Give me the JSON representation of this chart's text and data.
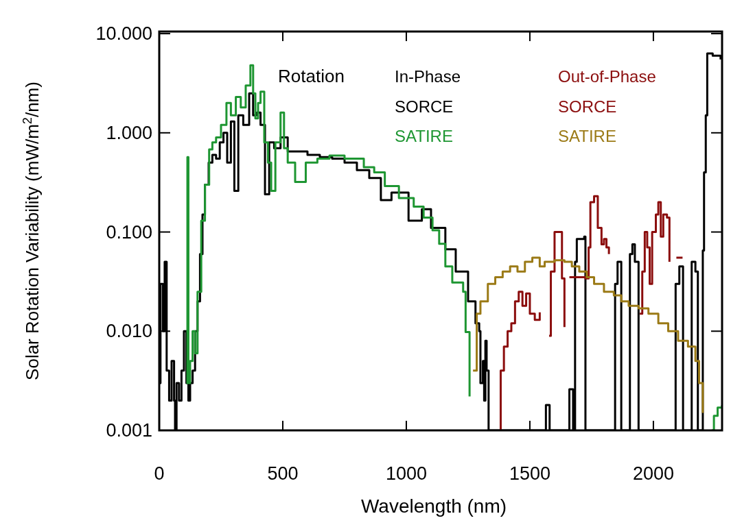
{
  "chart_data": {
    "type": "step",
    "xlabel": "Wavelength (nm)",
    "ylabel": "Solar Rotation Variability (mW/m$^{2}$/nm)",
    "legend_title": "Rotation",
    "annotations": [
      "In-Phase",
      "Out-of-Phase"
    ],
    "log": "y",
    "legend": "top",
    "xlim": [
      0,
      2278
    ],
    "ylim": [
      0.001,
      10.5
    ],
    "xticks": [
      0,
      500,
      1000,
      1500,
      2000
    ],
    "yticks": [
      {
        "value": 0.001,
        "label": "0.001"
      },
      {
        "value": 0.01,
        "label": "0.010"
      },
      {
        "value": 0.1,
        "label": "0.100"
      },
      {
        "value": 1,
        "label": "1.000"
      },
      {
        "value": 10,
        "label": "10.000"
      }
    ],
    "series": [
      {
        "name": "SORCE",
        "color": "#000000",
        "x": [
          0,
          5,
          15,
          22,
          30,
          40,
          50,
          60,
          64,
          70,
          80,
          90,
          100,
          110,
          118,
          125,
          135,
          145,
          155,
          165,
          175,
          185,
          200,
          215,
          230,
          245,
          260,
          275,
          290,
          304,
          320,
          340,
          364,
          380,
          395,
          410,
          428,
          445,
          465,
          491,
          520,
          550,
          600,
          650,
          700,
          750,
          800,
          850,
          897,
          940,
          1009,
          1063,
          1100,
          1158,
          1200,
          1250,
          1280,
          1295,
          1300,
          1310,
          1315,
          1320,
          1325,
          1333,
          1560,
          1565,
          1580,
          1655,
          1660,
          1675,
          1683,
          1690,
          1720,
          1725,
          1840,
          1845,
          1855,
          1870,
          1900,
          1905,
          1915,
          1925,
          1940,
          2085,
          2090,
          2105,
          2120,
          2150,
          2155,
          2170,
          2180,
          2195,
          2200,
          2205,
          2212,
          2218,
          2240,
          2272
        ],
        "values": [
          0.003,
          0.03,
          0.01,
          0.05,
          0.004,
          0.002,
          0.005,
          0.002,
          0.001,
          0.003,
          0.002,
          0.004,
          0.01,
          0.003,
          0.002,
          0.003,
          0.004,
          0.01,
          0.02,
          0.06,
          0.15,
          0.3,
          0.5,
          0.6,
          0.55,
          0.8,
          1.0,
          0.5,
          1.3,
          0.26,
          1.5,
          1.2,
          2.5,
          1.5,
          1.6,
          1.2,
          0.24,
          0.8,
          0.7,
          0.9,
          0.65,
          0.65,
          0.6,
          0.57,
          0.55,
          0.5,
          0.42,
          0.35,
          0.21,
          0.25,
          0.13,
          0.17,
          0.11,
          0.067,
          0.04,
          0.02,
          0.012,
          0.01,
          0.003,
          0.005,
          0.002,
          0.008,
          0.004,
          0.001,
          0.001,
          0.0018,
          0.001,
          0.001,
          0.0026,
          0.001,
          0.05,
          0.085,
          0.09,
          0.001,
          0.001,
          0.03,
          0.05,
          0.001,
          0.001,
          0.06,
          0.075,
          0.05,
          0.001,
          0.001,
          0.03,
          0.045,
          0.001,
          0.001,
          0.05,
          0.04,
          0.001,
          0.001,
          0.065,
          0.4,
          1.5,
          6.3,
          6.0,
          5.5
        ]
      },
      {
        "name": "SATIRE",
        "color": "#1e9632",
        "x": [
          110,
          114,
          118,
          125,
          135,
          145,
          155,
          170,
          185,
          202,
          215,
          230,
          250,
          272,
          290,
          310,
          330,
          350,
          369,
          380,
          389,
          400,
          410,
          425,
          440,
          453,
          470,
          491,
          505,
          520,
          550,
          593,
          640,
          689,
          750,
          828,
          870,
          913,
          970,
          1030,
          1070,
          1106,
          1133,
          1158,
          1186,
          1230,
          1240,
          1256,
          1260,
          2236,
          2245,
          2260,
          2278
        ],
        "values": [
          0.003,
          0.57,
          0.003,
          0.005,
          0.01,
          0.006,
          0.025,
          0.13,
          0.3,
          0.68,
          0.8,
          0.9,
          1.2,
          2.0,
          1.5,
          2.3,
          1.8,
          3.0,
          4.8,
          2.5,
          1.4,
          2.0,
          2.6,
          0.8,
          0.5,
          0.26,
          0.8,
          1.6,
          0.7,
          0.5,
          0.32,
          0.5,
          0.55,
          0.59,
          0.55,
          0.45,
          0.4,
          0.29,
          0.22,
          0.18,
          0.14,
          0.104,
          0.076,
          0.045,
          0.031,
          0.025,
          0.0098,
          0.0022,
          null,
          0.001,
          0.0014,
          0.0017,
          0.0018
        ]
      },
      {
        "name": "SORCE",
        "color": "#8b0d0d",
        "x": [
          1378,
          1382,
          1395,
          1410,
          1425,
          1440,
          1455,
          1470,
          1485,
          1500,
          1520,
          1540,
          1556,
          1578,
          1585,
          1600,
          1630,
          1640,
          1650,
          1660,
          1725,
          1738,
          1745,
          1760,
          1775,
          1790,
          1800,
          1810,
          1820,
          1830,
          1945,
          1955,
          1965,
          1975,
          1985,
          1995,
          2010,
          2020,
          2030,
          2040,
          2055,
          2065,
          2080,
          2093,
          2118
        ],
        "values": [
          0.001,
          0.004,
          0.007,
          0.01,
          0.012,
          0.02,
          0.025,
          0.018,
          0.024,
          0.015,
          0.013,
          0.0155,
          null,
          0.009,
          0.04,
          0.1,
          0.034,
          0.011,
          null,
          0.035,
          0.034,
          0.07,
          0.2,
          0.23,
          0.11,
          0.075,
          0.085,
          0.07,
          0.06,
          null,
          0.015,
          0.04,
          0.1,
          0.07,
          0.03,
          0.1,
          0.15,
          0.2,
          0.09,
          0.15,
          0.14,
          0.05,
          null,
          0.055,
          0.055
        ]
      },
      {
        "name": "SATIRE",
        "color": "#9b7a16",
        "x": [
          1270,
          1285,
          1300,
          1330,
          1360,
          1390,
          1420,
          1450,
          1480,
          1510,
          1540,
          1560,
          1600,
          1640,
          1670,
          1700,
          1730,
          1760,
          1800,
          1840,
          1870,
          1900,
          1940,
          1980,
          2020,
          2060,
          2100,
          2140,
          2170,
          2185,
          2200
        ],
        "values": [
          0.004,
          0.015,
          0.02,
          0.03,
          0.035,
          0.04,
          0.045,
          0.04,
          0.05,
          0.055,
          0.045,
          0.05,
          0.052,
          0.05,
          0.045,
          0.04,
          0.035,
          0.03,
          0.025,
          0.023,
          0.02,
          0.018,
          0.017,
          0.015,
          0.012,
          0.01,
          0.008,
          0.007,
          0.005,
          0.003,
          0.0015
        ]
      }
    ]
  }
}
